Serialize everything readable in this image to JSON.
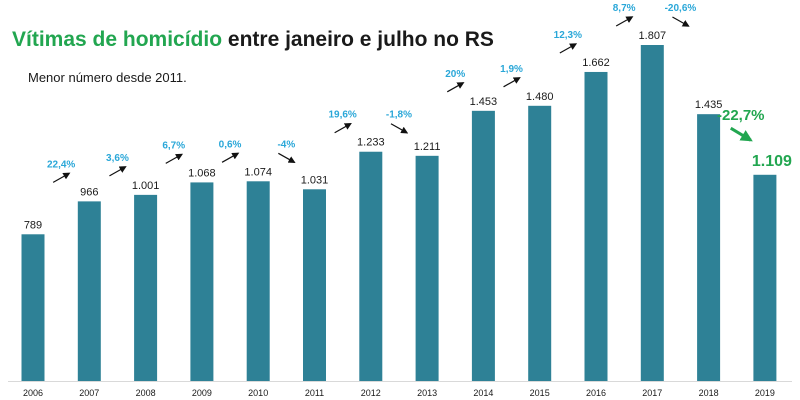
{
  "title": {
    "part1": "Vítimas de homicídio",
    "part2": "entre janeiro e julho no RS"
  },
  "subtitle": "Menor número desde 2011.",
  "colors": {
    "bar": "#2e8196",
    "title_accent": "#22a650",
    "change_label": "#2aa7d8",
    "highlight": "#22a650",
    "arrow": "#111111",
    "axis": "#d9d9d9"
  },
  "chart_data": {
    "type": "bar",
    "categories": [
      "2006",
      "2007",
      "2008",
      "2009",
      "2010",
      "2011",
      "2012",
      "2013",
      "2014",
      "2015",
      "2016",
      "2017",
      "2018",
      "2019"
    ],
    "values": [
      789,
      966,
      1001,
      1068,
      1074,
      1031,
      1233,
      1211,
      1453,
      1480,
      1662,
      1807,
      1435,
      1109
    ],
    "value_labels": [
      "789",
      "966",
      "1.001",
      "1.068",
      "1.074",
      "1.031",
      "1.233",
      "1.211",
      "1.453",
      "1.480",
      "1.662",
      "1.807",
      "1.435",
      "1.109"
    ],
    "changes": [
      "22,4%",
      "3,6%",
      "6,7%",
      "0,6%",
      "-4%",
      "19,6%",
      "-1,8%",
      "20%",
      "1,9%",
      "12,3%",
      "8,7%",
      "-20,6%",
      "-22,7%"
    ],
    "ylim": [
      0,
      1807
    ],
    "grid": false,
    "highlight_last": true
  }
}
